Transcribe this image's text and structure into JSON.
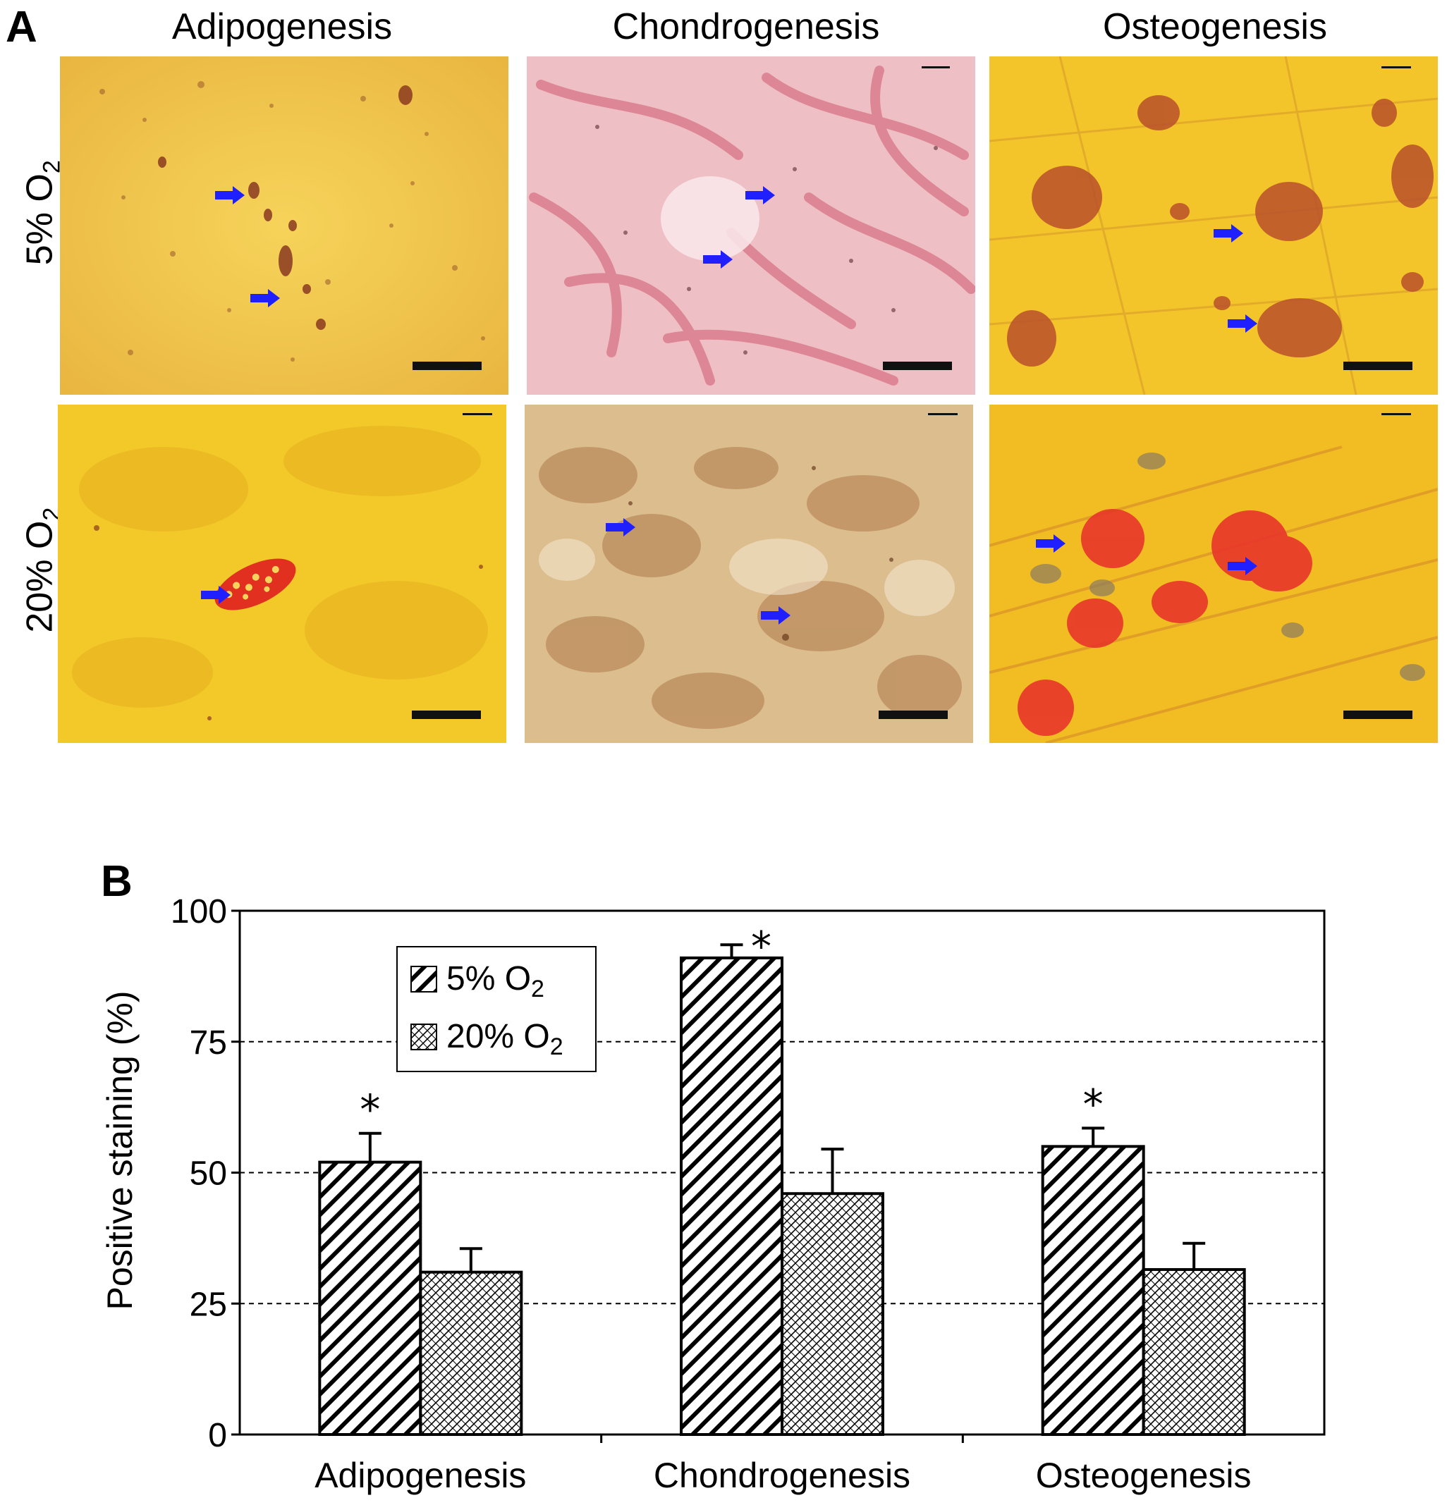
{
  "panel_a": {
    "letter": "A",
    "columns": [
      "Adipogenesis",
      "Chondrogenesis",
      "Osteogenesis"
    ],
    "rows": [
      {
        "label": "5% O",
        "sub": "2"
      },
      {
        "label": "20% O",
        "sub": "2"
      }
    ]
  },
  "panel_b": {
    "letter": "B"
  },
  "chart_data": {
    "type": "bar",
    "categories": [
      "Adipogenesis",
      "Chondrogenesis",
      "Osteogenesis"
    ],
    "series": [
      {
        "name": "5% O2",
        "values": [
          52,
          91,
          55
        ],
        "errors": [
          5.5,
          2.5,
          3.5
        ],
        "pattern": "diagonal-hatch"
      },
      {
        "name": "20% O2",
        "values": [
          31,
          46,
          31.5
        ],
        "errors": [
          4.5,
          8.5,
          5
        ],
        "pattern": "cross-hatch"
      }
    ],
    "significance": [
      "*",
      "*",
      "*"
    ],
    "ylabel": "Positive staining (%)",
    "xlabel": "",
    "ylim": [
      0,
      100
    ],
    "yticks": [
      0,
      25,
      50,
      75,
      100
    ],
    "grid": "dashed horizontal at 25, 50, 75",
    "legend": {
      "placement": "upper-left",
      "entries": [
        {
          "text": "5% O",
          "sub": "2"
        },
        {
          "text": "20% O",
          "sub": "2"
        }
      ]
    }
  },
  "colors": {
    "arrow": "#2020ff",
    "scale_bar": "#111111",
    "adipo_bg": "#f2c84a",
    "chondro_5_bg": "#f0c2c8",
    "chondro_20_bg": "#d8b888",
    "osteo_bg": "#f3c323",
    "stain_red": "#e83030"
  }
}
